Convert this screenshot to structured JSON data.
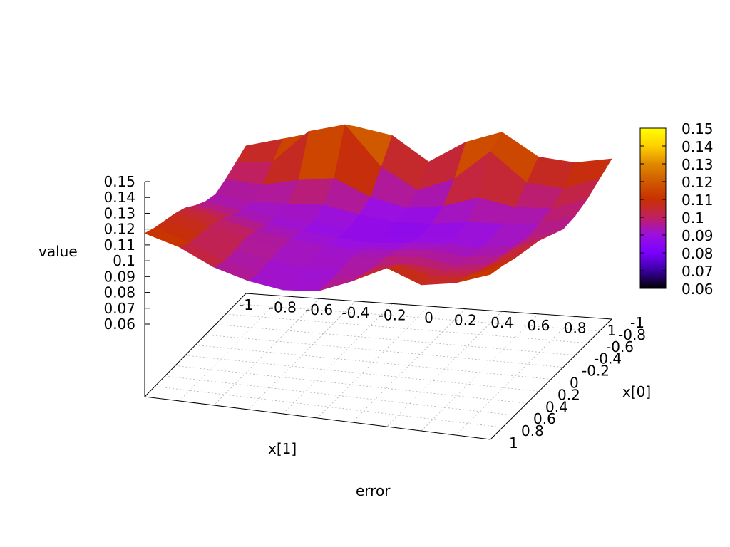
{
  "chart_data": {
    "type": "surface3d",
    "title": "error",
    "zlabel": "value",
    "xlabel": "x[1]",
    "ylabel": "x[0]",
    "x_axis_name": "x[1]",
    "y_axis_name": "x[0]",
    "xlim": [
      -1,
      1
    ],
    "ylim": [
      -1,
      1
    ],
    "zlim": [
      0.06,
      0.15
    ],
    "x_ticks": [
      "-1",
      "-0.8",
      "-0.6",
      "-0.4",
      "-0.2",
      "0",
      "0.2",
      "0.4",
      "0.6",
      "0.8",
      "1"
    ],
    "y_ticks": [
      "-1",
      "-0.8",
      "-0.6",
      "-0.4",
      "-0.2",
      "0",
      "0.2",
      "0.4",
      "0.6",
      "0.8",
      "1"
    ],
    "z_ticks": [
      "0.15",
      "0.14",
      "0.13",
      "0.12",
      "0.11",
      "0.1",
      "0.09",
      "0.08",
      "0.07",
      "0.06"
    ],
    "colorbar_ticks": [
      "0.15",
      "0.14",
      "0.13",
      "0.12",
      "0.11",
      "0.1",
      "0.09",
      "0.08",
      "0.07",
      "0.06"
    ],
    "colorbar_range": [
      0.06,
      0.15
    ],
    "palette": [
      "#000000",
      "#3a00a0",
      "#7a00ff",
      "#9a10e0",
      "#c02060",
      "#c83000",
      "#d05a00",
      "#e08a00",
      "#ffd000",
      "#ffff00"
    ],
    "base_grid": true,
    "surface_grid_x": [
      -1,
      -0.8,
      -0.6,
      -0.4,
      -0.2,
      0,
      0.2,
      0.4,
      0.6,
      0.8,
      1
    ],
    "surface_grid_y": [
      -1,
      -0.8,
      -0.6,
      -0.4,
      -0.2,
      0,
      0.2,
      0.4,
      0.6,
      0.8,
      1
    ],
    "surface_values": [
      [
        0.106,
        0.112,
        0.118,
        0.123,
        0.119,
        0.104,
        0.118,
        0.126,
        0.112,
        0.11,
        0.114
      ],
      [
        0.102,
        0.104,
        0.125,
        0.131,
        0.106,
        0.093,
        0.102,
        0.121,
        0.103,
        0.101,
        0.109
      ],
      [
        0.098,
        0.096,
        0.101,
        0.104,
        0.094,
        0.089,
        0.092,
        0.099,
        0.095,
        0.096,
        0.104
      ],
      [
        0.095,
        0.092,
        0.093,
        0.094,
        0.09,
        0.087,
        0.088,
        0.091,
        0.092,
        0.094,
        0.101
      ],
      [
        0.097,
        0.093,
        0.091,
        0.09,
        0.088,
        0.086,
        0.087,
        0.089,
        0.09,
        0.093,
        0.1
      ],
      [
        0.101,
        0.097,
        0.093,
        0.091,
        0.089,
        0.088,
        0.09,
        0.092,
        0.091,
        0.095,
        0.104
      ],
      [
        0.106,
        0.101,
        0.096,
        0.093,
        0.091,
        0.091,
        0.093,
        0.095,
        0.093,
        0.097,
        0.108
      ],
      [
        0.109,
        0.104,
        0.098,
        0.094,
        0.092,
        0.093,
        0.096,
        0.098,
        0.095,
        0.099,
        0.11
      ],
      [
        0.111,
        0.105,
        0.097,
        0.093,
        0.091,
        0.092,
        0.097,
        0.101,
        0.099,
        0.102,
        0.112
      ],
      [
        0.113,
        0.106,
        0.097,
        0.092,
        0.09,
        0.092,
        0.099,
        0.108,
        0.103,
        0.106,
        0.115
      ],
      [
        0.116,
        0.11,
        0.1,
        0.094,
        0.091,
        0.093,
        0.102,
        0.113,
        0.105,
        0.109,
        0.117
      ]
    ]
  }
}
